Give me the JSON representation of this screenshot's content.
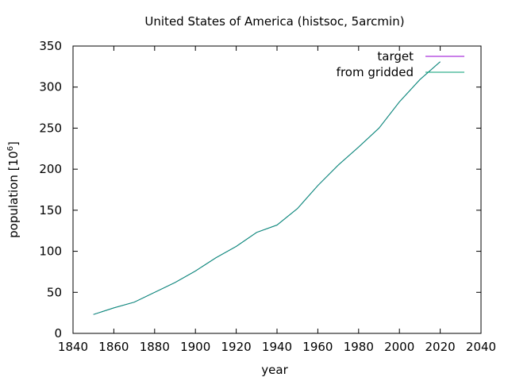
{
  "chart_data": {
    "type": "line",
    "title": "United States of America (histsoc, 5arcmin)",
    "xlabel": "year",
    "ylabel_main": "population [10",
    "ylabel_sup": "6",
    "ylabel_close": "]",
    "xlim": [
      1840,
      2040
    ],
    "ylim": [
      0,
      350
    ],
    "xticks": [
      1840,
      1860,
      1880,
      1900,
      1920,
      1940,
      1960,
      1980,
      2000,
      2020,
      2040
    ],
    "yticks": [
      0,
      50,
      100,
      150,
      200,
      250,
      300,
      350
    ],
    "grid": false,
    "legend_position": "top-right",
    "series": [
      {
        "name": "target",
        "color": "#9400d3",
        "x": [
          1850,
          1860,
          1870,
          1880,
          1890,
          1900,
          1910,
          1920,
          1930,
          1940,
          1950,
          1960,
          1970,
          1980,
          1990,
          2000,
          2010,
          2020
        ],
        "values": [
          23,
          31,
          38,
          50,
          62,
          76,
          92,
          106,
          123,
          132,
          152,
          180,
          205,
          227,
          250,
          282,
          309,
          331
        ]
      },
      {
        "name": "from gridded",
        "color": "#009e73",
        "x": [
          1850,
          1860,
          1870,
          1880,
          1890,
          1900,
          1910,
          1920,
          1930,
          1940,
          1950,
          1960,
          1970,
          1980,
          1990,
          2000,
          2010,
          2020
        ],
        "values": [
          23,
          31,
          38,
          50,
          62,
          76,
          92,
          106,
          123,
          132,
          152,
          180,
          205,
          227,
          250,
          282,
          309,
          331
        ]
      }
    ]
  }
}
